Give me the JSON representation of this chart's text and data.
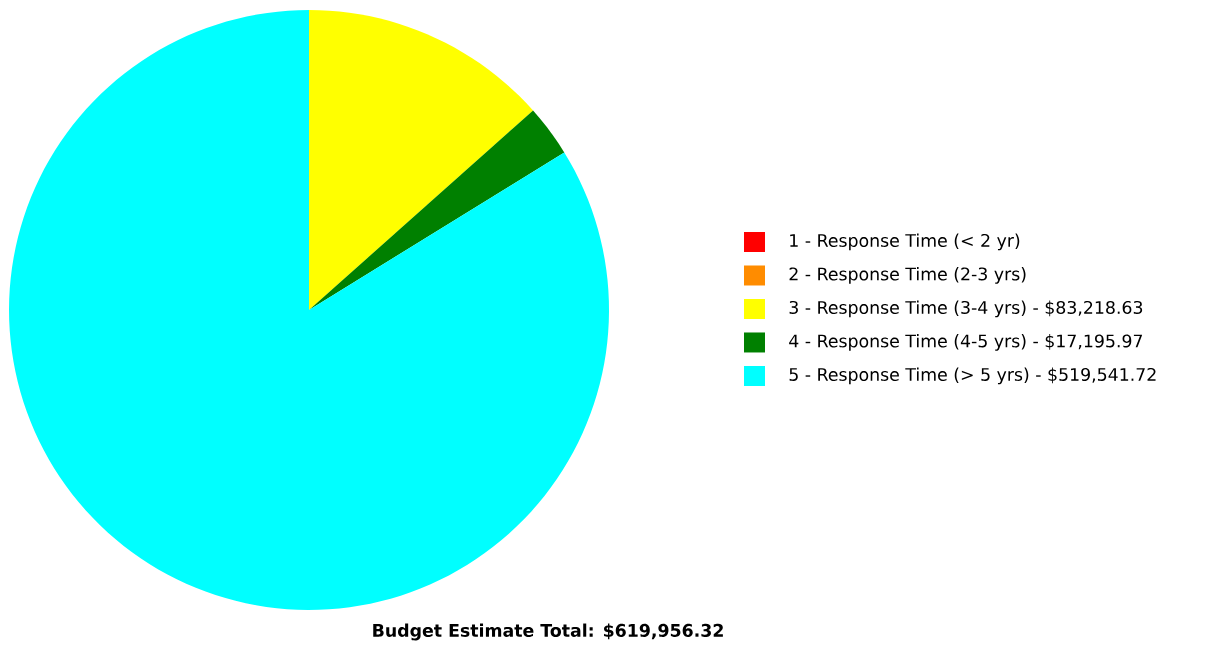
{
  "chart_data": {
    "type": "pie",
    "title": "Budget Estimate Total: $619,956.32",
    "categories": [
      "1 - Response Time (< 2 yr)",
      "2 - Response Time (2-3 yrs)",
      "3 - Response Time (3-4 yrs) - $83,218.63",
      "4 - Response Time (4-5 yrs) - $17,195.97",
      "5 - Response Time (> 5 yrs) - $519,541.72"
    ],
    "values": [
      0,
      0,
      13.4233,
      2.7737,
      83.803
    ],
    "colors": [
      "#ff0000",
      "#ff8c00",
      "#ffff00",
      "#008000",
      "#00ffff"
    ],
    "legend": "right"
  }
}
